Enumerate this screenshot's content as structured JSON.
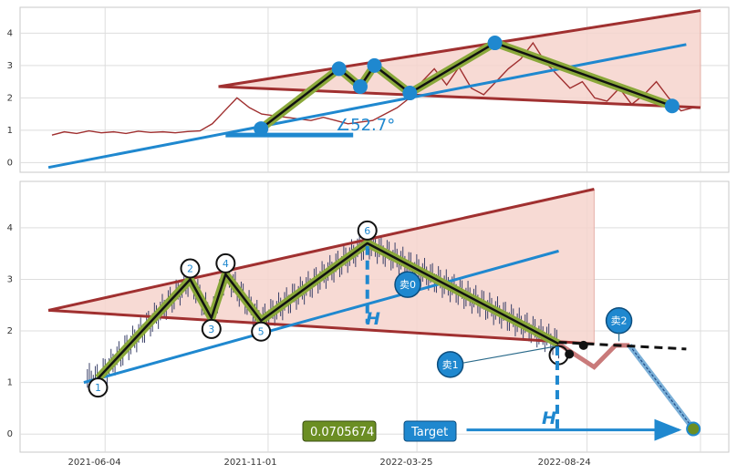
{
  "colors": {
    "panel_bg": "#ffffff",
    "grid": "#dddddd",
    "frame": "#c8c8c8",
    "price": "#a03030",
    "trend_blue": "#1f88cf",
    "channel_red": "#a03030",
    "channel_fill": "#f6d3cc",
    "wave_outer": "#8aa83a",
    "wave_inner": "#111111",
    "projection": "#c97a7a",
    "value_badge": "#6b8e23",
    "target_badge": "#1f88cf"
  },
  "angle_label": "∠52.7°",
  "value_badge": "0.0705674",
  "target_label": "Target",
  "h_label": "H",
  "chart_data": [
    {
      "type": "line",
      "panel": "top",
      "ylim": [
        -0.3,
        4.8
      ],
      "yticks": [
        "0",
        "1",
        "2",
        "3",
        "4"
      ],
      "price_series": [
        0.85,
        0.95,
        0.9,
        0.98,
        0.92,
        0.95,
        0.9,
        0.97,
        0.93,
        0.95,
        0.92,
        0.96,
        0.98,
        1.2,
        1.6,
        2.0,
        1.7,
        1.5,
        1.45,
        1.4,
        1.35,
        1.3,
        1.4,
        1.3,
        1.2,
        1.25,
        1.3,
        1.5,
        1.7,
        2.0,
        2.5,
        2.9,
        2.4,
        2.95,
        2.3,
        2.1,
        2.5,
        2.9,
        3.2,
        3.7,
        3.1,
        2.7,
        2.3,
        2.5,
        2.0,
        1.9,
        2.3,
        1.8,
        2.1,
        2.5,
        2.0,
        1.6,
        1.7
      ],
      "wave_points": [
        [
          0.34,
          1.05
        ],
        [
          0.45,
          2.9
        ],
        [
          0.48,
          2.35
        ],
        [
          0.5,
          3.0
        ],
        [
          0.55,
          2.15
        ],
        [
          0.67,
          3.7
        ],
        [
          0.92,
          1.75
        ]
      ],
      "channel_upper": [
        [
          0.28,
          2.35
        ],
        [
          0.96,
          4.7
        ]
      ],
      "channel_lower": [
        [
          0.28,
          2.35
        ],
        [
          0.96,
          1.7
        ]
      ],
      "trend_line": [
        [
          0.04,
          -0.15
        ],
        [
          0.94,
          3.65
        ]
      ],
      "angle_base": [
        [
          0.29,
          0.85
        ],
        [
          0.47,
          0.85
        ]
      ]
    },
    {
      "type": "line",
      "panel": "bottom",
      "ylim": [
        -0.35,
        4.9
      ],
      "yticks": [
        "0",
        "1",
        "2",
        "3",
        "4"
      ],
      "xticks": [
        "2021-06-04",
        "2021-11-01",
        "2022-03-25",
        "2022-08-24"
      ],
      "wave_labels": [
        "1",
        "2",
        "3",
        "4",
        "5",
        "6"
      ],
      "wave_points": [
        [
          0.11,
          1.08
        ],
        [
          0.24,
          3.0
        ],
        [
          0.27,
          2.25
        ],
        [
          0.29,
          3.1
        ],
        [
          0.34,
          2.2
        ],
        [
          0.49,
          3.7
        ],
        [
          0.76,
          1.75
        ]
      ],
      "channel_upper": [
        [
          0.04,
          2.4
        ],
        [
          0.81,
          4.75
        ]
      ],
      "channel_lower": [
        [
          0.04,
          2.4
        ],
        [
          0.81,
          1.75
        ]
      ],
      "trend_line": [
        [
          0.09,
          1.0
        ],
        [
          0.76,
          3.55
        ]
      ],
      "projection": [
        [
          0.76,
          1.75
        ],
        [
          0.81,
          1.3
        ],
        [
          0.84,
          1.72
        ],
        [
          0.86,
          1.72
        ],
        [
          0.95,
          0.1
        ]
      ],
      "dashed_extension": [
        [
          0.76,
          1.78
        ],
        [
          0.94,
          1.65
        ]
      ],
      "sell_labels": [
        "卖0",
        "卖1",
        "卖2"
      ],
      "target_arrow": [
        [
          0.63,
          0.08
        ],
        [
          0.94,
          0.08
        ]
      ]
    }
  ]
}
